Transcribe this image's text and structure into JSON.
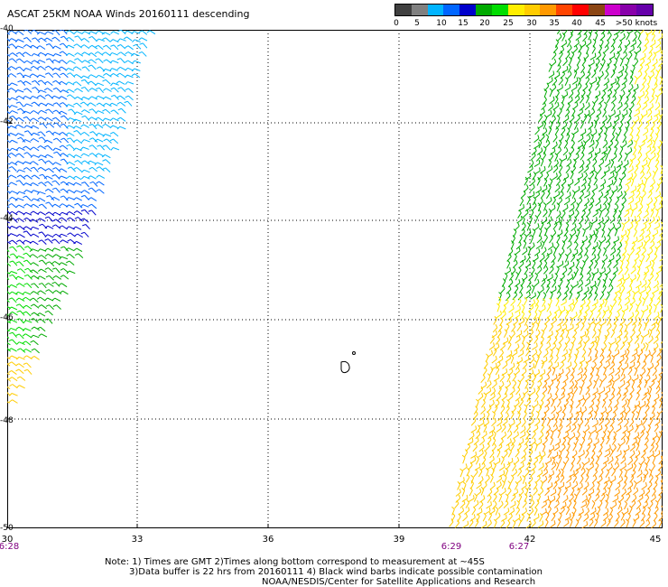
{
  "title": "ASCAT 25KM NOAA Winds 20160111 descending",
  "legend": {
    "colors": [
      "#404040",
      "#808080",
      "#00b4ff",
      "#0066ff",
      "#0000cc",
      "#00aa00",
      "#00dd00",
      "#ffee00",
      "#ffcc00",
      "#ff9900",
      "#ff4400",
      "#ff0000",
      "#8b4513",
      "#cc00cc",
      "#8800aa",
      "#6600aa"
    ],
    "labels": [
      "0",
      "5",
      "10",
      "15",
      "20",
      "25",
      "30",
      "35",
      "40",
      "45",
      ">50 knots"
    ]
  },
  "map": {
    "lon_ticks": [
      "30",
      "33",
      "36",
      "39",
      "42",
      "45"
    ],
    "lat_ticks": [
      "-40",
      "-42",
      "-44",
      "-46",
      "-48",
      "-50"
    ],
    "time_labels": [
      "6:28",
      "6:29",
      "6:27"
    ]
  },
  "notes": {
    "line1": "Note: 1) Times are GMT 2)Times along bottom correspond to measurement at ~45S",
    "line2": "3)Data buffer is 22 hrs from 20160111 4) Black wind barbs indicate possible contamination",
    "line3": "NOAA/NESDIS/Center for Satellite Applications and Research"
  }
}
